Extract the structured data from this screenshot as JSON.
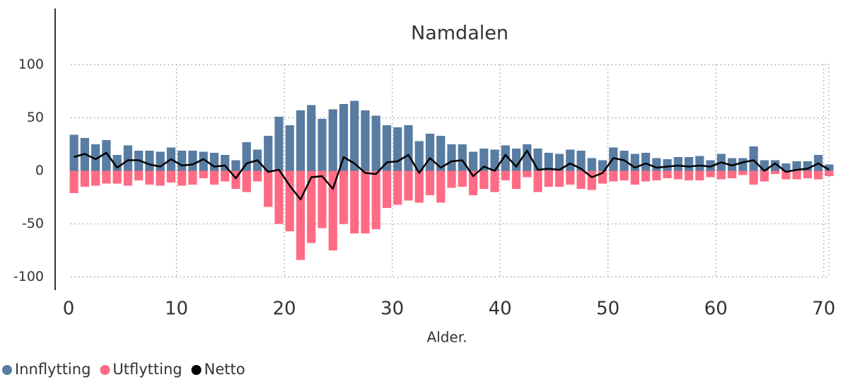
{
  "chart_data": {
    "type": "bar",
    "title": "Namdalen",
    "x_label": "Alder.",
    "x": [
      0.5,
      1.5,
      2.5,
      3.5,
      4.5,
      5.5,
      6.5,
      7.5,
      8.5,
      9.5,
      10.5,
      11.5,
      12.5,
      13.5,
      14.5,
      15.5,
      16.5,
      17.5,
      18.5,
      19.5,
      20.5,
      21.5,
      22.5,
      23.5,
      24.5,
      25.5,
      26.5,
      27.5,
      28.5,
      29.5,
      30.5,
      31.5,
      32.5,
      33.5,
      34.5,
      35.5,
      36.5,
      37.5,
      38.5,
      39.5,
      40.5,
      41.5,
      42.5,
      43.5,
      44.5,
      45.5,
      46.5,
      47.5,
      48.5,
      49.5,
      50.5,
      51.5,
      52.5,
      53.5,
      54.5,
      55.5,
      56.5,
      57.5,
      58.5,
      59.5,
      60.5,
      61.5,
      62.5,
      63.5,
      64.5,
      65.5,
      66.5,
      67.5,
      68.5,
      69.5,
      70.5
    ],
    "series": [
      {
        "name": "Innflytting",
        "type": "bar",
        "color": "#587ca2",
        "values": [
          34,
          31,
          25,
          29,
          15,
          24,
          19,
          19,
          18,
          22,
          19,
          19,
          18,
          17,
          15,
          10,
          27,
          20,
          33,
          51,
          43,
          57,
          62,
          49,
          58,
          63,
          66,
          57,
          52,
          43,
          41,
          43,
          28,
          35,
          33,
          25,
          25,
          18,
          21,
          20,
          24,
          21,
          25,
          21,
          17,
          16,
          20,
          19,
          12,
          10,
          22,
          19,
          16,
          17,
          12,
          11,
          13,
          13,
          14,
          10,
          16,
          12,
          12,
          23,
          10,
          10,
          7,
          9,
          9,
          15,
          6
        ]
      },
      {
        "name": "Utflytting",
        "type": "bar",
        "color": "#ff6b84",
        "values": [
          -21,
          -15,
          -14,
          -12,
          -12,
          -14,
          -9,
          -13,
          -14,
          -11,
          -14,
          -13,
          -7,
          -13,
          -10,
          -17,
          -20,
          -10,
          -34,
          -50,
          -57,
          -84,
          -68,
          -54,
          -75,
          -50,
          -59,
          -59,
          -55,
          -35,
          -32,
          -28,
          -30,
          -23,
          -30,
          -16,
          -15,
          -23,
          -17,
          -20,
          -9,
          -17,
          -6,
          -20,
          -15,
          -15,
          -13,
          -17,
          -18,
          -12,
          -10,
          -9,
          -13,
          -10,
          -9,
          -7,
          -8,
          -9,
          -9,
          -6,
          -8,
          -7,
          -4,
          -13,
          -10,
          -3,
          -8,
          -8,
          -7,
          -8,
          -5
        ]
      },
      {
        "name": "Netto",
        "type": "line",
        "color": "#000000",
        "values": [
          13,
          16,
          11,
          17,
          3,
          10,
          10,
          6,
          4,
          11,
          5,
          6,
          11,
          4,
          5,
          -7,
          7,
          10,
          -1,
          1,
          -14,
          -27,
          -6,
          -5,
          -17,
          13,
          7,
          -2,
          -3,
          8,
          9,
          15,
          -2,
          12,
          3,
          9,
          10,
          -5,
          4,
          0,
          15,
          4,
          19,
          1,
          2,
          1,
          7,
          2,
          -6,
          -2,
          12,
          10,
          3,
          7,
          3,
          4,
          5,
          4,
          5,
          4,
          8,
          5,
          8,
          10,
          0,
          7,
          -1,
          1,
          2,
          7,
          1
        ]
      }
    ],
    "xlim": [
      0,
      71
    ],
    "xticks": [
      0,
      10,
      20,
      30,
      40,
      50,
      60,
      70
    ],
    "ylim": [
      -113,
      153
    ],
    "yticks": [
      -100,
      -50,
      0,
      50,
      100
    ],
    "grid": true,
    "legend": "bottom-left"
  }
}
